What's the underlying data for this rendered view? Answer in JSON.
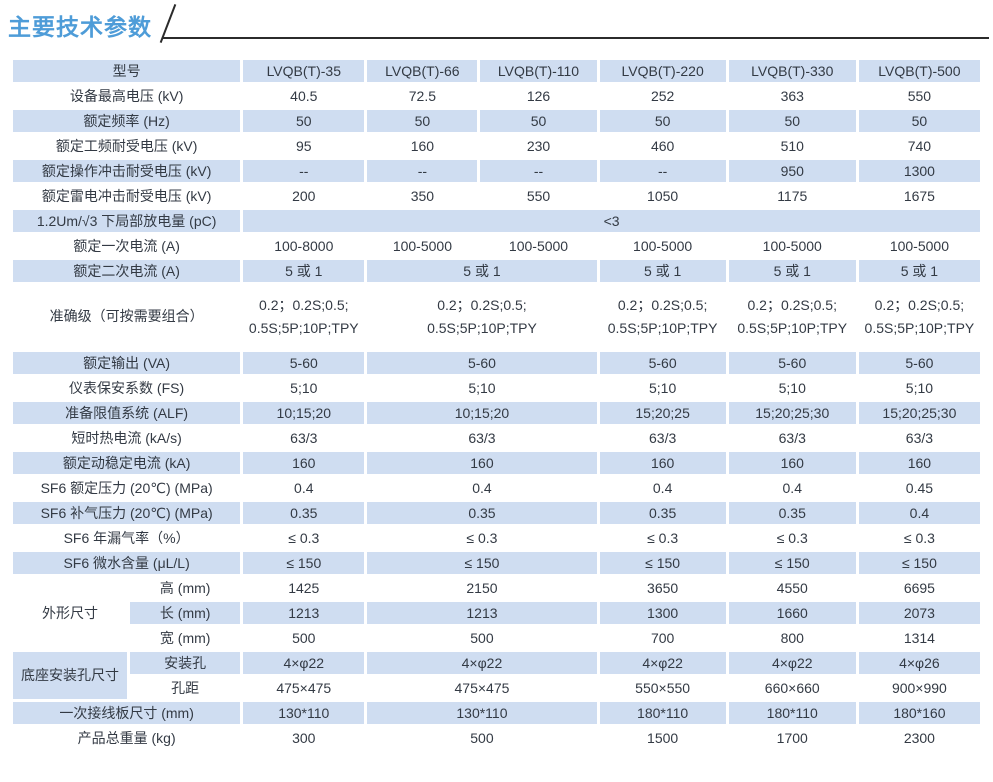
{
  "page": {
    "title": "主要技术参数"
  },
  "colors": {
    "accent": "#4e9cd8",
    "row_shade": "#cfddf1",
    "rule": "#2b2b2b",
    "text": "#333a44"
  },
  "table": {
    "header": {
      "label": "型号",
      "models": [
        "LVQB(T)-35",
        "LVQB(T)-66",
        "LVQB(T)-110",
        "LVQB(T)-220",
        "LVQB(T)-330",
        "LVQB(T)-500"
      ]
    },
    "rows": [
      {
        "label": "设备最高电压 (kV)",
        "shade": false,
        "cells": [
          "40.5",
          "72.5",
          "126",
          "252",
          "363",
          "550"
        ]
      },
      {
        "label": "额定频率 (Hz)",
        "shade": true,
        "cells": [
          "50",
          "50",
          "50",
          "50",
          "50",
          "50"
        ]
      },
      {
        "label": "额定工频耐受电压 (kV)",
        "shade": false,
        "cells": [
          "95",
          "160",
          "230",
          "460",
          "510",
          "740"
        ]
      },
      {
        "label": "额定操作冲击耐受电压 (kV)",
        "shade": true,
        "cells": [
          "--",
          "--",
          "--",
          "--",
          "950",
          "1300"
        ]
      },
      {
        "label": "额定雷电冲击耐受电压 (kV)",
        "shade": false,
        "cells": [
          "200",
          "350",
          "550",
          "1050",
          "1175",
          "1675"
        ]
      },
      {
        "label": "1.2Um/√3 下局部放电量 (pC)",
        "shade": true,
        "cells": [
          {
            "t": "<3",
            "s": 6
          }
        ]
      },
      {
        "label": "额定一次电流 (A)",
        "shade": false,
        "cells": [
          "100-8000",
          "100-5000",
          "100-5000",
          "100-5000",
          "100-5000",
          "100-5000"
        ]
      },
      {
        "label": "额定二次电流 (A)",
        "shade": true,
        "cells": [
          "5 或 1",
          {
            "t": "5 或 1",
            "s": 2
          },
          "5 或 1",
          "5 或 1",
          "5 或 1"
        ]
      },
      {
        "label": "准确级（可按需要组合）",
        "shade": false,
        "tall": true,
        "cells": [
          "0.2；0.2S;0.5;\n0.5S;5P;10P;TPY",
          {
            "t": "0.2；0.2S;0.5;\n0.5S;5P;10P;TPY",
            "s": 2
          },
          "0.2；0.2S;0.5;\n0.5S;5P;10P;TPY",
          "0.2；0.2S;0.5;\n0.5S;5P;10P;TPY",
          "0.2；0.2S;0.5;\n0.5S;5P;10P;TPY"
        ]
      },
      {
        "label": "额定输出 (VA)",
        "shade": true,
        "cells": [
          "5-60",
          {
            "t": "5-60",
            "s": 2
          },
          "5-60",
          "5-60",
          "5-60"
        ]
      },
      {
        "label": "仪表保安系数 (FS)",
        "shade": false,
        "cells": [
          "5;10",
          {
            "t": "5;10",
            "s": 2
          },
          "5;10",
          "5;10",
          "5;10"
        ]
      },
      {
        "label": "准备限值系统 (ALF)",
        "shade": true,
        "cells": [
          "10;15;20",
          {
            "t": "10;15;20",
            "s": 2
          },
          "15;20;25",
          "15;20;25;30",
          "15;20;25;30"
        ]
      },
      {
        "label": "短时热电流 (kA/s)",
        "shade": false,
        "cells": [
          "63/3",
          {
            "t": "63/3",
            "s": 2
          },
          "63/3",
          "63/3",
          "63/3"
        ]
      },
      {
        "label": "额定动稳定电流 (kA)",
        "shade": true,
        "cells": [
          "160",
          {
            "t": "160",
            "s": 2
          },
          "160",
          "160",
          "160"
        ]
      },
      {
        "label": "SF6 额定压力 (20℃) (MPa)",
        "shade": false,
        "cells": [
          "0.4",
          {
            "t": "0.4",
            "s": 2
          },
          "0.4",
          "0.4",
          "0.45"
        ]
      },
      {
        "label": "SF6 补气压力 (20℃) (MPa)",
        "shade": true,
        "cells": [
          "0.35",
          {
            "t": "0.35",
            "s": 2
          },
          "0.35",
          "0.35",
          "0.4"
        ]
      },
      {
        "label": "SF6 年漏气率（%）",
        "shade": false,
        "cells": [
          "≤ 0.3",
          {
            "t": "≤ 0.3",
            "s": 2
          },
          "≤ 0.3",
          "≤ 0.3",
          "≤ 0.3"
        ]
      },
      {
        "label": "SF6 微水含量 (μL/L)",
        "shade": true,
        "cells": [
          "≤ 150",
          {
            "t": "≤ 150",
            "s": 2
          },
          "≤ 150",
          "≤ 150",
          "≤ 150"
        ]
      },
      {
        "group": {
          "label": "外形尺寸",
          "span": 3,
          "shade": false
        },
        "sublabel": "高 (mm)",
        "shade": false,
        "cells": [
          "1425",
          {
            "t": "2150",
            "s": 2
          },
          "3650",
          "4550",
          "6695"
        ]
      },
      {
        "sublabel": "长 (mm)",
        "shade": true,
        "cells": [
          "1213",
          {
            "t": "1213",
            "s": 2
          },
          "1300",
          "1660",
          "2073"
        ]
      },
      {
        "sublabel": "宽 (mm)",
        "shade": false,
        "cells": [
          "500",
          {
            "t": "500",
            "s": 2
          },
          "700",
          "800",
          "1314"
        ]
      },
      {
        "group": {
          "label": "底座安装孔尺寸",
          "span": 2,
          "shade": true
        },
        "sublabel": "安装孔",
        "shade": true,
        "cells": [
          "4×φ22",
          {
            "t": "4×φ22",
            "s": 2
          },
          "4×φ22",
          "4×φ22",
          "4×φ26"
        ]
      },
      {
        "sublabel": "孔距",
        "shade": false,
        "cells": [
          "475×475",
          {
            "t": "475×475",
            "s": 2
          },
          "550×550",
          "660×660",
          "900×990"
        ]
      },
      {
        "label": "一次接线板尺寸 (mm)",
        "shade": true,
        "cells": [
          "130*110",
          {
            "t": "130*110",
            "s": 2
          },
          "180*110",
          "180*110",
          "180*160"
        ]
      },
      {
        "label": "产品总重量 (kg)",
        "shade": false,
        "cells": [
          "300",
          {
            "t": "500",
            "s": 2
          },
          "1500",
          "1700",
          "2300"
        ]
      }
    ]
  }
}
